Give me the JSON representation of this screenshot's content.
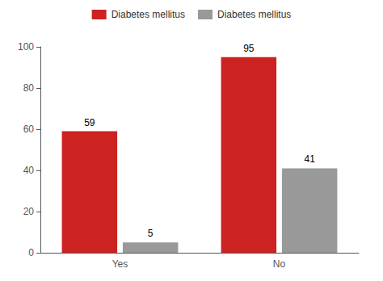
{
  "chart_data": {
    "type": "bar",
    "categories": [
      "Yes",
      "No"
    ],
    "series": [
      {
        "name": "Diabetes mellitus",
        "color": "#cc2222",
        "values": [
          59,
          95
        ]
      },
      {
        "name": "Diabetes mellitus",
        "color": "#999999",
        "values": [
          5,
          41
        ]
      }
    ],
    "ylim": [
      0,
      100
    ],
    "yticks": [
      0,
      20,
      40,
      60,
      80,
      100
    ],
    "grid": false,
    "legend": "top",
    "data_labels": true
  }
}
